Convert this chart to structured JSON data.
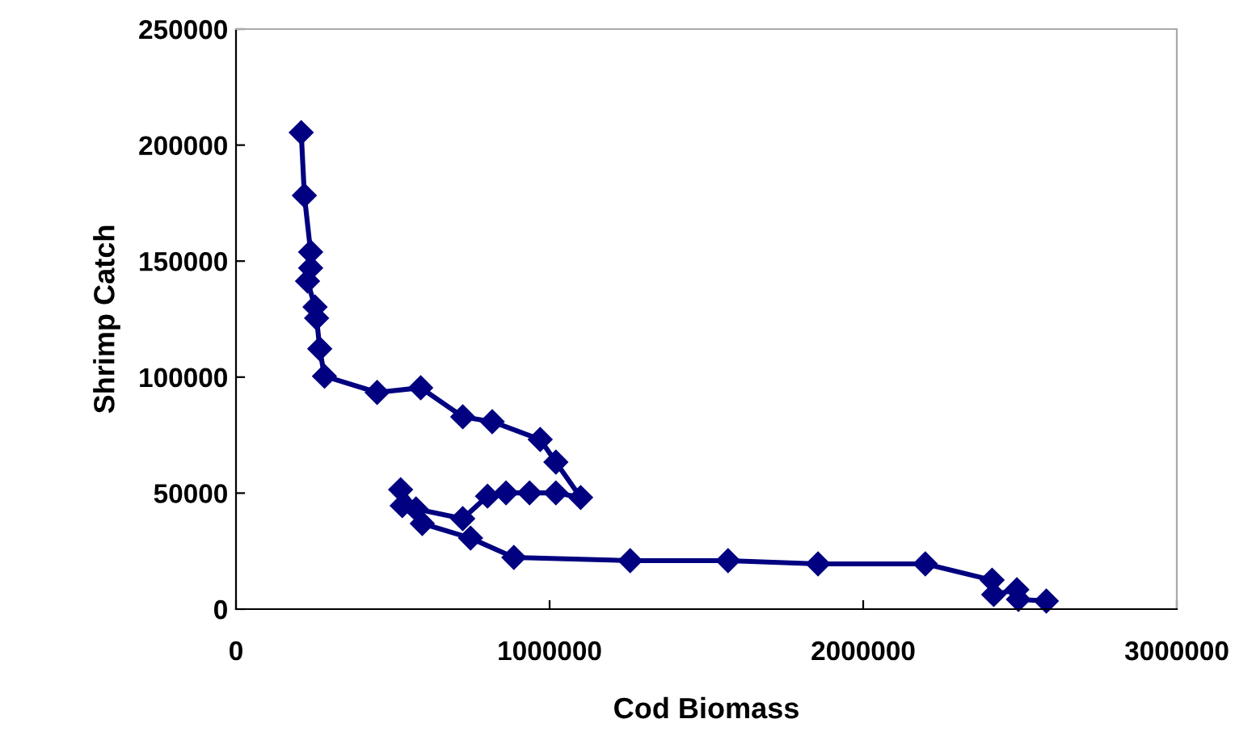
{
  "chart_data": {
    "type": "line",
    "xlabel": "Cod Biomass",
    "ylabel": "Shrimp Catch",
    "xlim": [
      0,
      3000000
    ],
    "xticks": [
      0,
      1000000,
      2000000,
      3000000
    ],
    "ylim": [
      0,
      250000
    ],
    "yticks": [
      0,
      50000,
      100000,
      150000,
      200000,
      250000
    ],
    "grid": false,
    "legend": false,
    "marker": "diamond",
    "line_style": "solid",
    "series": [
      {
        "color": "#000080",
        "x": [
          208000,
          218000,
          238000,
          238000,
          228000,
          252000,
          257000,
          267000,
          282000,
          450000,
          589000,
          723000,
          817000,
          970000,
          1020000,
          1099000,
          1020000,
          936000,
          861000,
          802000,
          723000,
          574000,
          525000,
          530000,
          594000,
          748000,
          886000,
          1257000,
          1569000,
          1856000,
          2198000,
          2411000,
          2416000,
          2490000,
          2495000,
          2584000
        ],
        "values": [
          205400,
          178300,
          153900,
          147000,
          141400,
          130200,
          125400,
          112200,
          100400,
          93400,
          95400,
          82900,
          80800,
          73100,
          63400,
          48100,
          50100,
          50100,
          50100,
          48700,
          39000,
          43200,
          51500,
          44600,
          36900,
          30600,
          22300,
          20900,
          20900,
          19500,
          19500,
          12500,
          6300,
          8400,
          4200,
          3500
        ]
      }
    ]
  }
}
